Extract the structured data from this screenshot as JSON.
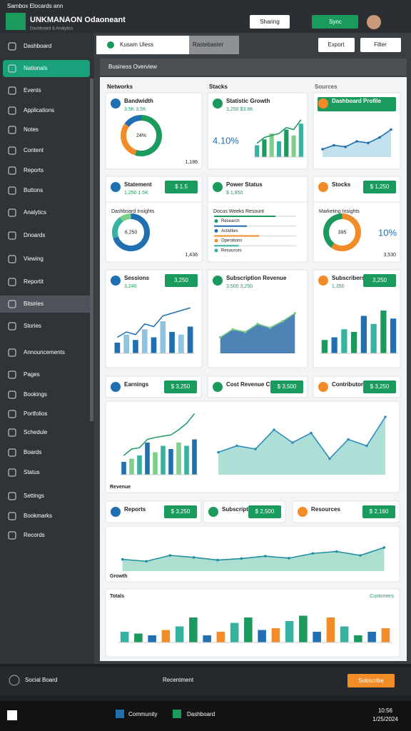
{
  "window": {
    "title": "Sambox Elocards ann",
    "app_name": "UNKMANAON Odaoneant",
    "app_subtitle": "Dashboard & Analytics",
    "share": "Sharing",
    "sync": "Sync",
    "export": "Export",
    "filter": "Filter"
  },
  "tabs": [
    "Kusam Uless",
    "Rastebaster"
  ],
  "toolbar": {
    "breadcrumb": "Business Overview"
  },
  "sections": [
    "Networks",
    "Stacks",
    "Sources"
  ],
  "sidebar": {
    "active": 1,
    "highlighted": 12,
    "items": [
      "Dashboard",
      "Nationals",
      "Events",
      "Applications",
      "Notes",
      "Content",
      "Reports",
      "Buttons",
      "Analytics",
      "Dnoards",
      "Viewing",
      "Reportit",
      "Bitsiries",
      "Stories",
      "Announcements",
      "Pages",
      "Bookings",
      "Portfolios",
      "Schedule",
      "Boards",
      "Status",
      "Settings",
      "Bookmarks",
      "Records"
    ]
  },
  "cards": [
    {
      "title": "Bandwidth",
      "value": "3.5K  3.5K",
      "foot": "1,186",
      "chart": {
        "type": "donut",
        "values": [
          55,
          30,
          15
        ],
        "colors": [
          "#1a9a5c",
          "#f28c28",
          "#1f6fb2"
        ],
        "label": "24%"
      }
    },
    {
      "title": "Statistic Growth",
      "value": "3,250  $3.8K",
      "big": "4.10%",
      "chart": {
        "type": "bar",
        "ylim": [
          0,
          100
        ],
        "values": [
          30,
          45,
          60,
          40,
          70,
          55,
          85
        ],
        "colors": [
          "#36b3a0",
          "#1a9a5c",
          "#7fcf8a"
        ],
        "line": [
          35,
          50,
          55,
          60,
          75,
          70,
          95
        ],
        "line_color": "#1a9a5c"
      }
    },
    {
      "title": "Dashboard Profile",
      "header_badge": true,
      "chart": {
        "type": "area",
        "ylim": [
          0,
          100
        ],
        "values": [
          20,
          30,
          26,
          40,
          36,
          50,
          70
        ],
        "color": "#1f6fb2",
        "fill": "#b9dcea"
      }
    },
    {
      "title": "Statement",
      "value": "1,250  1.5K",
      "badge": "$ 1.5",
      "heading": "Dashboard Insights",
      "foot": "1,436",
      "chart": {
        "type": "donut",
        "values": [
          70,
          20,
          10
        ],
        "colors": [
          "#1f6fb2",
          "#36b3a0",
          "#7fcf8a"
        ],
        "label": "6,250"
      }
    },
    {
      "title": "Power Status",
      "value": "$ 1,850",
      "heading": "Docus Weeks Resount",
      "chart": {
        "type": "progress",
        "ylim": [
          0,
          100
        ],
        "labels": [
          "Research",
          "Activities",
          "Operations",
          "Resources"
        ],
        "values": [
          75,
          40,
          55,
          30
        ],
        "colors": [
          "#1a9a5c",
          "#1f6fb2",
          "#f28c28",
          "#36b3a0"
        ]
      }
    },
    {
      "title": "Stocks",
      "badge": "$ 1,250",
      "heading": "Marketing Insights",
      "foot": "3,530",
      "big": "10%",
      "chart": {
        "type": "donut",
        "values": [
          60,
          40
        ],
        "colors": [
          "#f28c28",
          "#1a9a5c"
        ],
        "label": "395"
      }
    },
    {
      "title": "Sessions",
      "value": "3,240",
      "badge": "3,250",
      "chart": {
        "type": "bar",
        "ylim": [
          0,
          100
        ],
        "values": [
          20,
          35,
          25,
          45,
          30,
          60,
          40,
          35,
          50
        ],
        "colors": [
          "#1f6fb2",
          "#8fc3e0"
        ],
        "line": [
          30,
          40,
          35,
          55,
          50,
          70,
          75,
          80,
          85
        ],
        "line_color": "#1f6fb2"
      }
    },
    {
      "title": "Subscription Revenue",
      "value": "3,500  3,250",
      "chart": {
        "type": "area",
        "ylim": [
          0,
          100
        ],
        "values": [
          30,
          45,
          40,
          55,
          48,
          60,
          75
        ],
        "color": "#7fcf8a",
        "fill": "#2f6fa8"
      }
    },
    {
      "title": "Subscribers",
      "value": "1,350",
      "badge": "3,250",
      "chart": {
        "type": "bar",
        "ylim": [
          0,
          100
        ],
        "values": [
          25,
          30,
          45,
          40,
          70,
          55,
          80,
          65
        ],
        "colors": [
          "#1a9a5c",
          "#1f6fb2",
          "#36b3a0"
        ]
      }
    },
    {
      "title": "Earnings",
      "badge": "$ 3,250"
    },
    {
      "title": "Cost Revenue Current",
      "badge": "$ 3,500"
    },
    {
      "title": "Contributors",
      "badge": "$ 3,250"
    },
    {
      "title": "Reports",
      "badge": "$ 3,250"
    },
    {
      "title": "Subscriptions",
      "badge": "$ 2,500"
    },
    {
      "title": "Resources",
      "badge": "$ 2,160"
    }
  ],
  "panels": [
    {
      "caption": "Revenue",
      "charts": [
        {
          "type": "bar",
          "ylim": [
            0,
            100
          ],
          "values": [
            20,
            25,
            30,
            50,
            35,
            45,
            40,
            50,
            45,
            55
          ],
          "colors": [
            "#1f6fb2",
            "#7fcf8a",
            "#36b3a0"
          ],
          "line": [
            30,
            40,
            42,
            55,
            58,
            60,
            62,
            70,
            80,
            95
          ],
          "line_color": "#1a9a5c"
        },
        {
          "type": "area",
          "ylim": [
            0,
            100
          ],
          "values": [
            35,
            45,
            40,
            70,
            50,
            65,
            25,
            55,
            45,
            90
          ],
          "color": "#2b8cbf",
          "fill": "#9fd9d0"
        }
      ]
    },
    {
      "caption": "Growth",
      "charts": [
        {
          "type": "area",
          "ylim": [
            0,
            100
          ],
          "values": [
            30,
            25,
            40,
            35,
            28,
            32,
            38,
            33,
            45,
            50,
            40,
            60
          ],
          "color": "#1f8fa0",
          "fill": "#9fd9c8"
        }
      ]
    },
    {
      "caption": "Totals",
      "legend": "Customers",
      "charts": [
        {
          "type": "bar",
          "ylim": [
            0,
            100
          ],
          "values": [
            30,
            25,
            20,
            35,
            45,
            70,
            20,
            30,
            55,
            70,
            35,
            40,
            60,
            75,
            30,
            70,
            45,
            20,
            30,
            40
          ],
          "colors": [
            "#36b3a0",
            "#1a9a5c",
            "#1f6fb2",
            "#f28c28"
          ]
        }
      ]
    }
  ],
  "bottom_bar": {
    "left": "Social Board",
    "center": "Recentment",
    "button": "Subscribe"
  },
  "taskbar": {
    "apps": [
      "Community",
      "Dashboard"
    ],
    "time": "10:56",
    "date": "1/25/2024"
  }
}
